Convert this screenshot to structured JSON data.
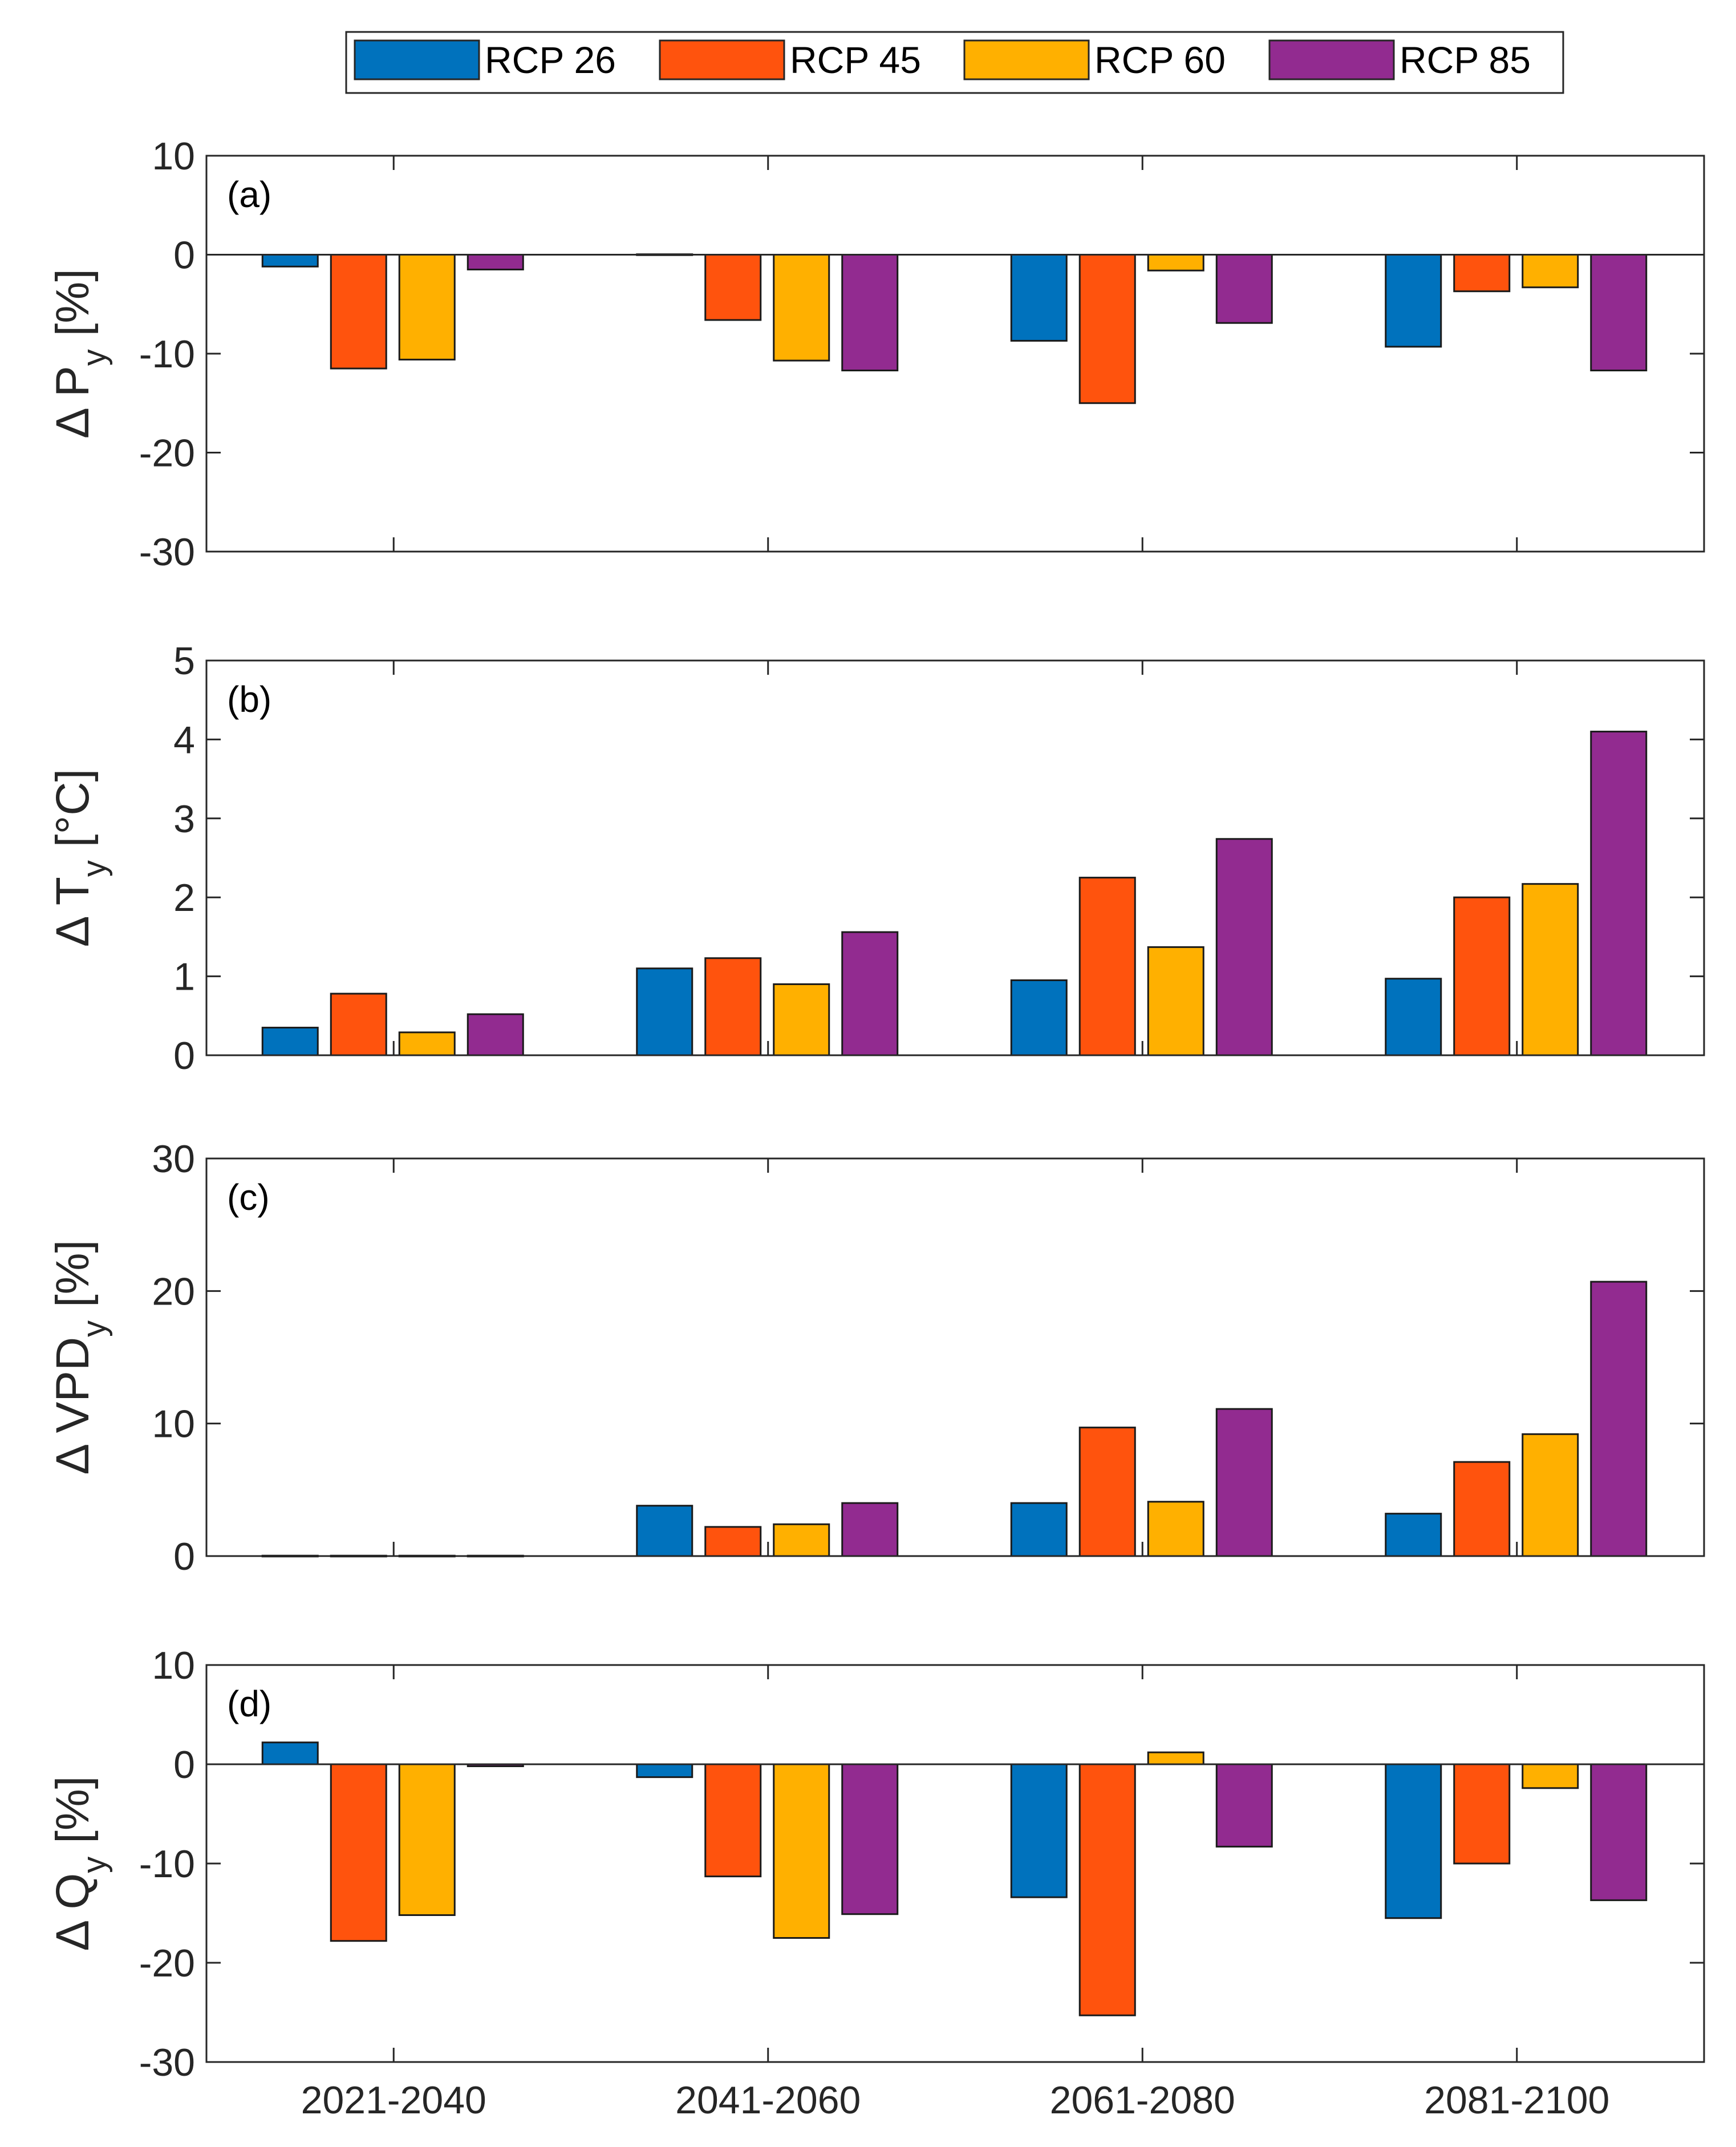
{
  "chart_data": {
    "type": "bar",
    "categories": [
      "2021-2040",
      "2041-2060",
      "2061-2080",
      "2081-2100"
    ],
    "legend": {
      "position": "top-center",
      "entries": [
        "RCP 26",
        "RCP 45",
        "RCP 60",
        "RCP 85"
      ]
    },
    "colors": [
      "#0072BD",
      "#FF530D",
      "#FFB000",
      "#922B90"
    ],
    "panels": [
      {
        "tag": "(a)",
        "ylabel": {
          "main": "Δ P",
          "sub": "y",
          "unit": " [%]"
        },
        "ylim": [
          -30,
          10
        ],
        "yticks": [
          -30,
          -20,
          -10,
          0,
          10
        ],
        "series": [
          {
            "name": "RCP 26",
            "values": [
              -1.2,
              0.0,
              -8.7,
              -9.3
            ]
          },
          {
            "name": "RCP 45",
            "values": [
              -11.5,
              -6.6,
              -15.0,
              -3.7
            ]
          },
          {
            "name": "RCP 60",
            "values": [
              -10.6,
              -10.7,
              -1.6,
              -3.3
            ]
          },
          {
            "name": "RCP 85",
            "values": [
              -1.5,
              -11.7,
              -6.9,
              -11.7
            ]
          }
        ]
      },
      {
        "tag": "(b)",
        "ylabel": {
          "main": "Δ T",
          "sub": "y",
          "unit": " [°C]"
        },
        "ylim": [
          0,
          5
        ],
        "yticks": [
          0,
          1,
          2,
          3,
          4,
          5
        ],
        "series": [
          {
            "name": "RCP 26",
            "values": [
              0.35,
              1.1,
              0.95,
              0.97
            ]
          },
          {
            "name": "RCP 45",
            "values": [
              0.78,
              1.23,
              2.25,
              2.0
            ]
          },
          {
            "name": "RCP 60",
            "values": [
              0.29,
              0.9,
              1.37,
              2.17
            ]
          },
          {
            "name": "RCP 85",
            "values": [
              0.52,
              1.56,
              2.74,
              4.1
            ]
          }
        ]
      },
      {
        "tag": "(c)",
        "ylabel": {
          "main": "Δ VPD",
          "sub": "y",
          "unit": " [%]"
        },
        "ylim": [
          0,
          30
        ],
        "yticks": [
          0,
          10,
          20,
          30
        ],
        "series": [
          {
            "name": "RCP 26",
            "values": [
              0.0,
              3.8,
              4.0,
              3.2
            ]
          },
          {
            "name": "RCP 45",
            "values": [
              0.0,
              2.2,
              9.7,
              7.1
            ]
          },
          {
            "name": "RCP 60",
            "values": [
              0.0,
              2.4,
              4.1,
              9.2
            ]
          },
          {
            "name": "RCP 85",
            "values": [
              0.0,
              4.0,
              11.1,
              20.7
            ]
          }
        ]
      },
      {
        "tag": "(d)",
        "ylabel": {
          "main": "Δ Q",
          "sub": "y",
          "unit": " [%]"
        },
        "ylim": [
          -30,
          10
        ],
        "yticks": [
          -30,
          -20,
          -10,
          0,
          10
        ],
        "series": [
          {
            "name": "RCP 26",
            "values": [
              2.2,
              -1.3,
              -13.4,
              -15.5
            ]
          },
          {
            "name": "RCP 45",
            "values": [
              -17.8,
              -11.3,
              -25.3,
              -10.0
            ]
          },
          {
            "name": "RCP 60",
            "values": [
              -15.2,
              -17.5,
              1.2,
              -2.4
            ]
          },
          {
            "name": "RCP 85",
            "values": [
              -0.2,
              -15.1,
              -8.3,
              -13.7
            ]
          }
        ]
      }
    ]
  }
}
